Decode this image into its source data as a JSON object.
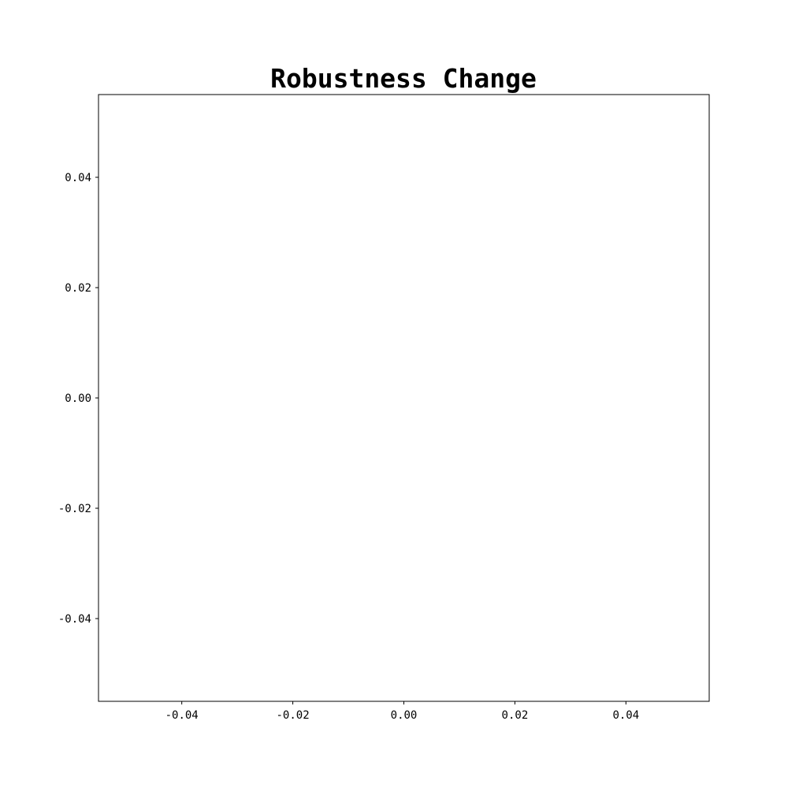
{
  "chart_data": {
    "type": "line",
    "title": "Robustness Change",
    "xlabel": "",
    "ylabel": "",
    "series": [],
    "xlim": [
      -0.055,
      0.055
    ],
    "ylim": [
      -0.055,
      0.055
    ],
    "x_ticks": [
      {
        "value": -0.04,
        "label": "-0.04"
      },
      {
        "value": -0.02,
        "label": "-0.02"
      },
      {
        "value": 0.0,
        "label": "0.00"
      },
      {
        "value": 0.02,
        "label": "0.02"
      },
      {
        "value": 0.04,
        "label": "0.04"
      }
    ],
    "y_ticks": [
      {
        "value": 0.04,
        "label": "0.04"
      },
      {
        "value": 0.02,
        "label": "0.02"
      },
      {
        "value": 0.0,
        "label": "0.00"
      },
      {
        "value": -0.02,
        "label": "-0.02"
      },
      {
        "value": -0.04,
        "label": "-0.04"
      }
    ],
    "grid": false,
    "legend": "none",
    "colors": {
      "frame": "#000000",
      "background": "#ffffff",
      "text": "#000000"
    }
  }
}
